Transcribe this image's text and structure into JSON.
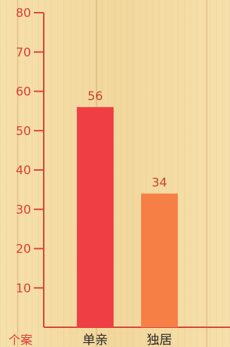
{
  "chart_data": {
    "type": "bar",
    "categories": [
      "单亲",
      "独居"
    ],
    "values": [
      56,
      34
    ],
    "value_labels": [
      "56",
      "34"
    ],
    "ylim": [
      0,
      80
    ],
    "ticks": [
      10,
      20,
      30,
      40,
      50,
      60,
      70,
      80
    ],
    "tick_labels": [
      "10",
      "20",
      "30",
      "40",
      "50",
      "60",
      "70",
      "80"
    ],
    "ylabel_bottom": "个案",
    "grid": false,
    "colors": {
      "axis": "#d9403a",
      "tick_text": "#d9403a",
      "bars": [
        "#ef3e44",
        "#f57f45"
      ],
      "value_text": "#c2442d",
      "category_text": "#2b2b2b"
    }
  }
}
